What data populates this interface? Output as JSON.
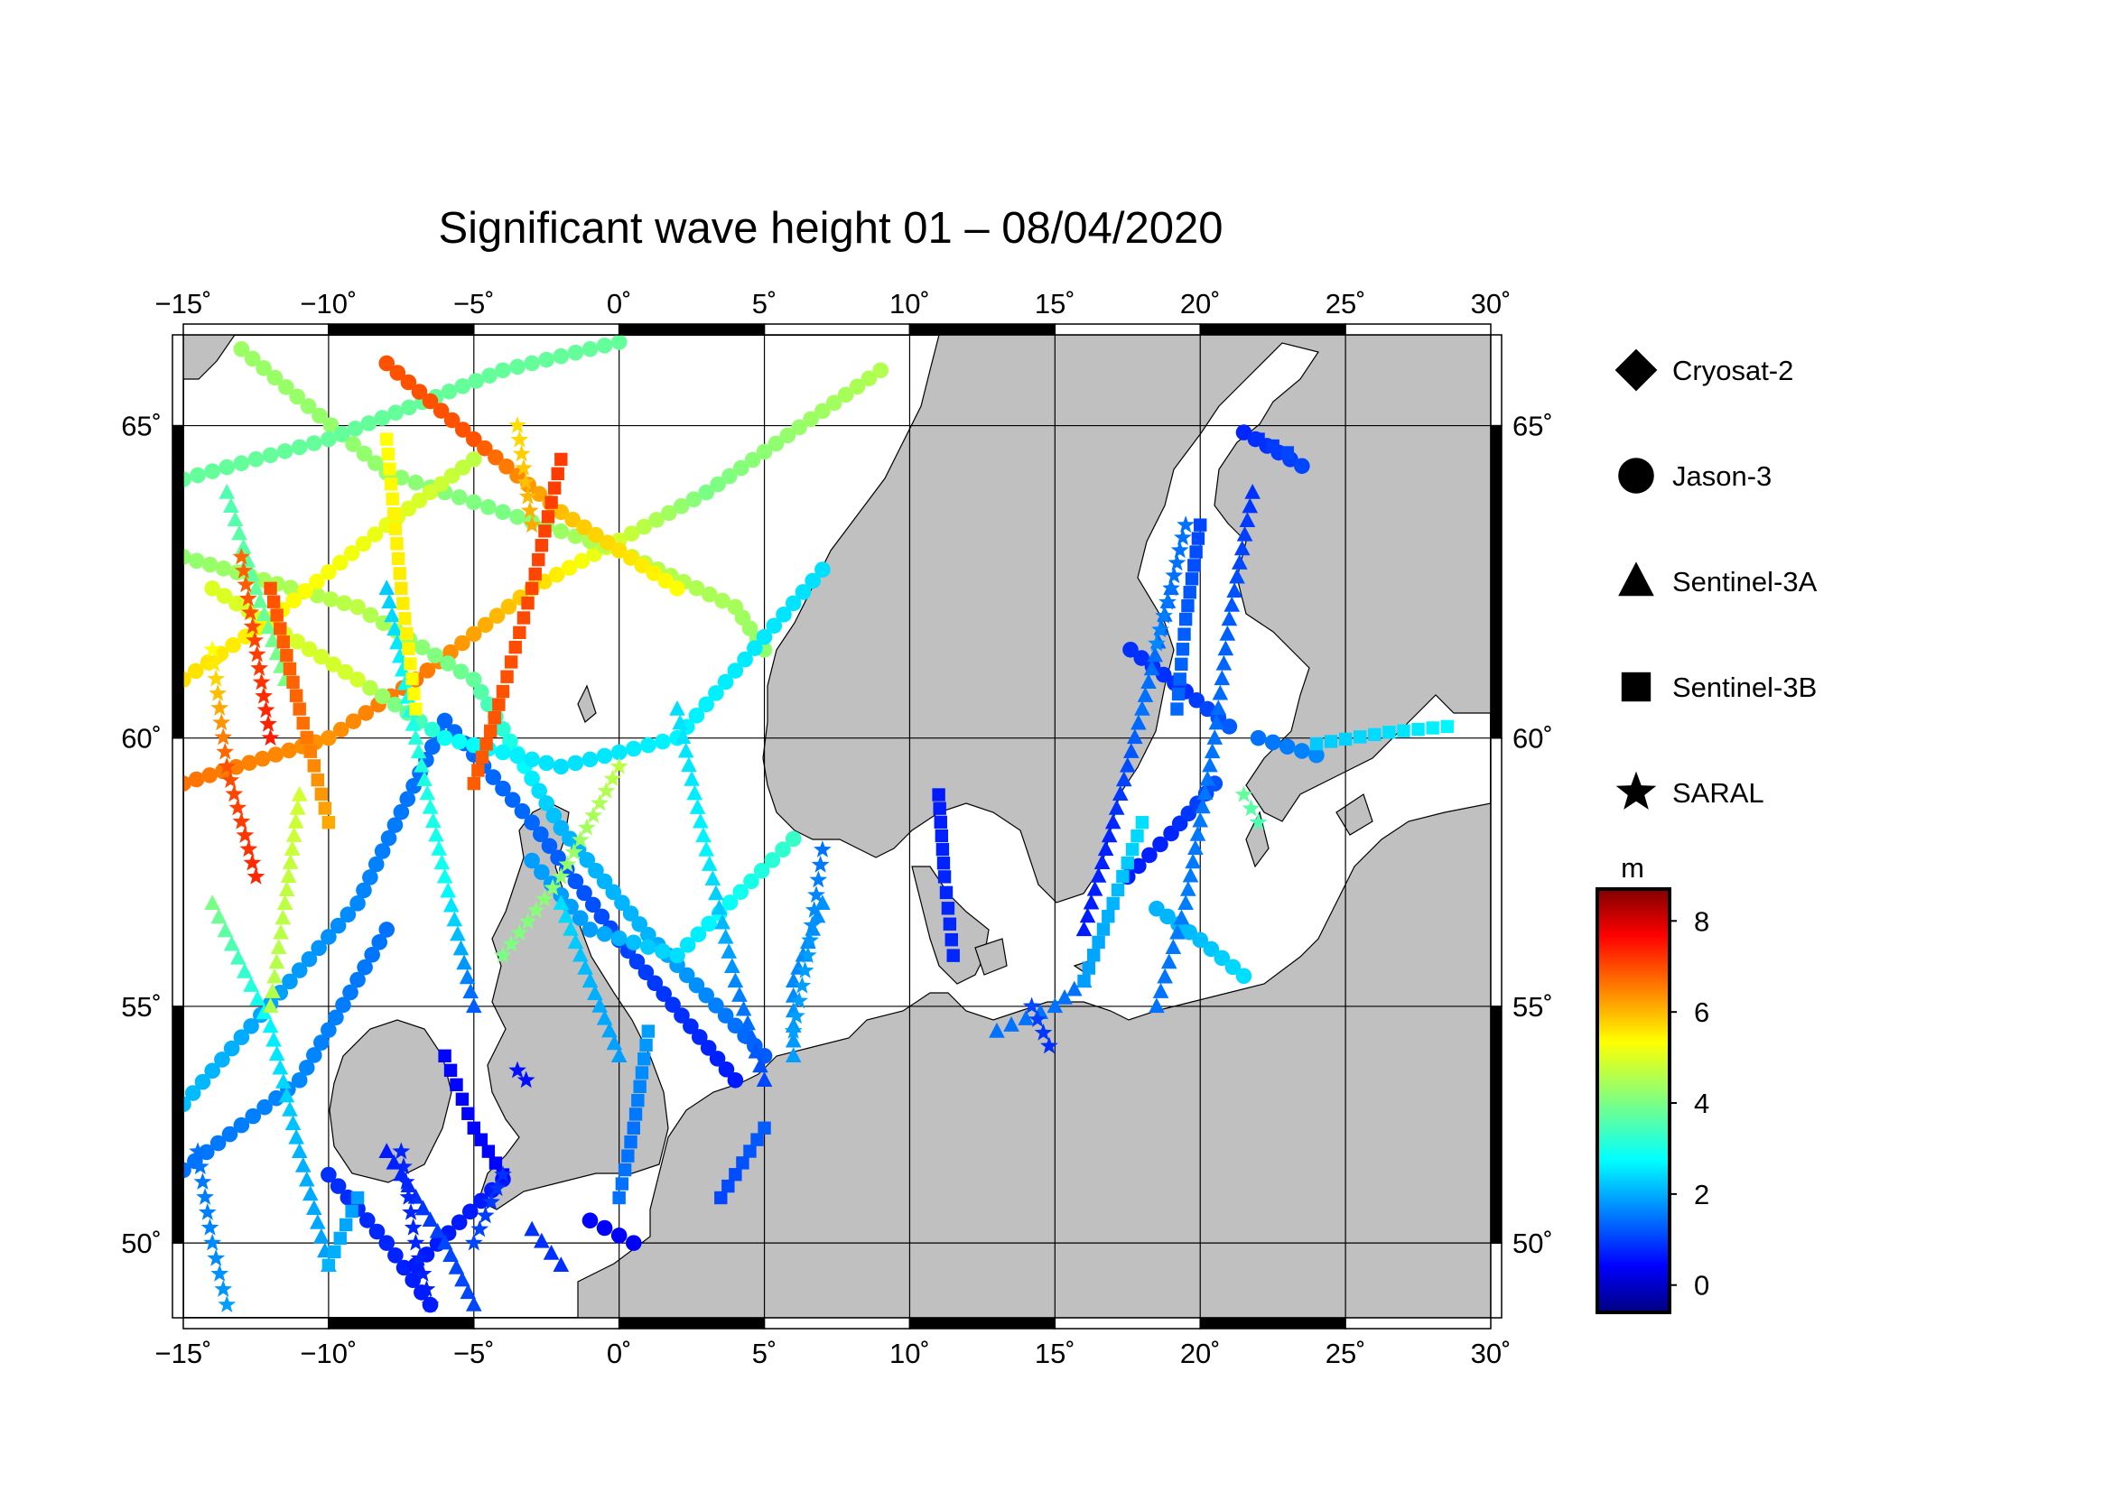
{
  "title": "Significant wave height 01 – 08/04/2020",
  "map": {
    "lon_range": [
      -15,
      30
    ],
    "lat_range": [
      48.3,
      66.3
    ],
    "projection": "mercator",
    "lon_ticks": [
      -15,
      -10,
      -5,
      0,
      5,
      10,
      15,
      20,
      25,
      30
    ],
    "lat_ticks": [
      50,
      55,
      60,
      65
    ],
    "lon_tick_labels": [
      "−15˚",
      "−10˚",
      "−5˚",
      "0˚",
      "5˚",
      "10˚",
      "15˚",
      "20˚",
      "25˚",
      "30˚"
    ],
    "lat_tick_labels": [
      "50˚",
      "55˚",
      "60˚",
      "65˚"
    ],
    "land_color": "#c0c0c0",
    "sea_color": "#ffffff"
  },
  "legend": {
    "items": [
      {
        "label": "Cryosat-2",
        "symbol": "diamond"
      },
      {
        "label": "Jason-3",
        "symbol": "circle"
      },
      {
        "label": "Sentinel-3A",
        "symbol": "triangle"
      },
      {
        "label": "Sentinel-3B",
        "symbol": "square"
      },
      {
        "label": "SARAL",
        "symbol": "star"
      }
    ]
  },
  "colorbar": {
    "unit": "m",
    "range": [
      -0.6,
      8.7
    ],
    "ticks": [
      0,
      2,
      4,
      6,
      8
    ],
    "tick_labels": [
      "0",
      "2",
      "4",
      "6",
      "8"
    ],
    "colormap": "jet"
  },
  "tracks": [
    {
      "sat": "Jason-3",
      "points": [
        [
          -15,
          53.0,
          2.3
        ],
        [
          -9,
          57.0,
          1.8
        ],
        [
          -6,
          60.3,
          1.5
        ],
        [
          -3,
          58.5,
          1.5
        ],
        [
          0,
          56.3,
          1.2
        ],
        [
          4,
          53.5,
          0.8
        ]
      ]
    },
    {
      "sat": "Jason-3",
      "points": [
        [
          -15,
          59.2,
          6.5
        ],
        [
          -10,
          60.0,
          6.2
        ],
        [
          -7,
          61.0,
          6.5
        ],
        [
          -3,
          62.5,
          5.6
        ],
        [
          3,
          64.0,
          4.0
        ],
        [
          9,
          65.8,
          4.5
        ]
      ]
    },
    {
      "sat": "Jason-3",
      "points": [
        [
          -15,
          63.0,
          4.2
        ],
        [
          -9,
          62.2,
          4.6
        ],
        [
          -5,
          61.0,
          3.8
        ],
        [
          -2,
          58.4,
          2.2
        ],
        [
          1,
          56.4,
          2.2
        ],
        [
          5,
          54.0,
          1.4
        ]
      ]
    },
    {
      "sat": "Jason-3",
      "points": [
        [
          -13,
          66.1,
          4.3
        ],
        [
          -8,
          64.3,
          4.2
        ],
        [
          -4,
          63.7,
          4.0
        ],
        [
          0,
          63.1,
          4.6
        ],
        [
          4,
          62.2,
          4.4
        ],
        [
          5,
          61.5,
          4.2
        ]
      ]
    },
    {
      "sat": "Jason-3",
      "points": [
        [
          -15,
          64.2,
          3.8
        ],
        [
          -10,
          64.8,
          3.8
        ],
        [
          -4,
          65.8,
          3.8
        ],
        [
          0,
          66.2,
          3.8
        ]
      ]
    },
    {
      "sat": "Jason-3",
      "points": [
        [
          -14,
          62.5,
          4.9
        ],
        [
          -9,
          61.0,
          4.8
        ],
        [
          -6,
          60.0,
          3.0
        ],
        [
          -2,
          59.5,
          2.6
        ],
        [
          2,
          60.0,
          2.8
        ],
        [
          7,
          62.8,
          2.6
        ]
      ]
    },
    {
      "sat": "Jason-3",
      "points": [
        [
          -8,
          65.9,
          6.8
        ],
        [
          -5,
          64.8,
          6.8
        ],
        [
          -2,
          63.7,
          5.8
        ],
        [
          2,
          62.5,
          5.2
        ]
      ]
    },
    {
      "sat": "Jason-3",
      "points": [
        [
          -15,
          61.0,
          5.5
        ],
        [
          -12,
          62.0,
          5.3
        ],
        [
          -8,
          63.5,
          5.0
        ],
        [
          -5,
          64.5,
          4.6
        ]
      ]
    },
    {
      "sat": "Jason-3",
      "points": [
        [
          -10,
          51.5,
          1.0
        ],
        [
          -8,
          50.0,
          0.9
        ],
        [
          -6.5,
          48.6,
          0.8
        ]
      ]
    },
    {
      "sat": "Jason-3",
      "points": [
        [
          -15,
          51.6,
          1.6
        ],
        [
          -11,
          53.5,
          1.8
        ],
        [
          -8,
          56.5,
          1.6
        ]
      ]
    },
    {
      "sat": "Jason-3",
      "points": [
        [
          -1,
          50.5,
          0.6
        ],
        [
          0.5,
          50.0,
          0.5
        ]
      ]
    },
    {
      "sat": "Jason-3",
      "points": [
        [
          -7,
          49.5,
          0.8
        ],
        [
          -4,
          51.4,
          0.8
        ]
      ]
    },
    {
      "sat": "Jason-3",
      "points": [
        [
          -3,
          57.8,
          2.0
        ],
        [
          -1,
          56.5,
          2.0
        ],
        [
          2,
          56.0,
          2.6
        ],
        [
          6,
          58.2,
          3.4
        ]
      ]
    },
    {
      "sat": "Jason-3",
      "points": [
        [
          17.5,
          57.5,
          0.8
        ],
        [
          19,
          58.3,
          0.9
        ],
        [
          20.5,
          59.2,
          1.3
        ]
      ]
    },
    {
      "sat": "Jason-3",
      "points": [
        [
          17.6,
          61.5,
          1.0
        ],
        [
          19.5,
          60.8,
          1.0
        ],
        [
          21,
          60.2,
          1.4
        ]
      ]
    },
    {
      "sat": "Jason-3",
      "points": [
        [
          18.5,
          56.9,
          2.2
        ],
        [
          20,
          56.3,
          2.3
        ],
        [
          21.5,
          55.6,
          2.6
        ]
      ]
    },
    {
      "sat": "Jason-3",
      "points": [
        [
          22,
          60.0,
          1.6
        ],
        [
          24,
          59.7,
          1.8
        ]
      ]
    },
    {
      "sat": "Jason-3",
      "points": [
        [
          21.5,
          64.9,
          0.9
        ],
        [
          23.5,
          64.4,
          1.2
        ]
      ]
    },
    {
      "sat": "Sentinel-3A",
      "points": [
        [
          -14,
          57.0,
          4.0
        ],
        [
          -12,
          54.6,
          2.8
        ],
        [
          -11,
          52.0,
          2.2
        ],
        [
          -10,
          49.5,
          2.0
        ]
      ]
    },
    {
      "sat": "Sentinel-3A",
      "points": [
        [
          -8,
          62.5,
          2.4
        ],
        [
          -7,
          60.0,
          3.2
        ],
        [
          -6,
          57.5,
          3.0
        ],
        [
          -5,
          55.0,
          1.4
        ]
      ]
    },
    {
      "sat": "Sentinel-3A",
      "points": [
        [
          2,
          60.5,
          2.6
        ],
        [
          3,
          58.0,
          2.8
        ],
        [
          4,
          55.5,
          1.8
        ],
        [
          5,
          53.5,
          1.2
        ]
      ]
    },
    {
      "sat": "Sentinel-3A",
      "points": [
        [
          -2,
          57.0,
          2.6
        ],
        [
          -1,
          55.5,
          2.2
        ],
        [
          0,
          54.0,
          2.0
        ]
      ]
    },
    {
      "sat": "Sentinel-3A",
      "points": [
        [
          7,
          57.0,
          1.9
        ],
        [
          6,
          55.5,
          1.8
        ],
        [
          6,
          54.0,
          2.0
        ]
      ]
    },
    {
      "sat": "Sentinel-3A",
      "points": [
        [
          19,
          62.5,
          1.5
        ],
        [
          18,
          60.5,
          1.6
        ],
        [
          17,
          58.5,
          0.9
        ],
        [
          16,
          56.5,
          0.8
        ]
      ]
    },
    {
      "sat": "Sentinel-3A",
      "points": [
        [
          21.8,
          64.0,
          1.0
        ],
        [
          21.0,
          62.0,
          1.4
        ],
        [
          20.5,
          60.0,
          1.6
        ],
        [
          19.5,
          57.0,
          1.7
        ],
        [
          18.5,
          55.0,
          1.6
        ]
      ]
    },
    {
      "sat": "Sentinel-3A",
      "points": [
        [
          -8,
          52.0,
          0.8
        ],
        [
          -6,
          50.0,
          1.2
        ],
        [
          -5,
          48.6,
          1.2
        ]
      ]
    },
    {
      "sat": "Sentinel-3A",
      "points": [
        [
          -3,
          50.3,
          1.0
        ],
        [
          -2,
          49.5,
          1.0
        ]
      ]
    },
    {
      "sat": "Sentinel-3A",
      "points": [
        [
          13,
          54.5,
          1.6
        ],
        [
          15,
          55.0,
          1.6
        ],
        [
          16,
          55.5,
          1.6
        ]
      ]
    },
    {
      "sat": "Sentinel-3A",
      "points": [
        [
          -12,
          55.0,
          4.5
        ],
        [
          -11.5,
          57.0,
          4.6
        ],
        [
          -11,
          59.0,
          4.8
        ]
      ]
    },
    {
      "sat": "Sentinel-3A",
      "points": [
        [
          -13.5,
          64.0,
          3.6
        ],
        [
          -12.5,
          62.5,
          3.8
        ],
        [
          -11.5,
          61.0,
          4.0
        ]
      ]
    },
    {
      "sat": "Sentinel-3B",
      "points": [
        [
          -12,
          62.5,
          6.8
        ],
        [
          -11,
          60.5,
          6.6
        ],
        [
          -10,
          58.5,
          6.0
        ]
      ]
    },
    {
      "sat": "Sentinel-3B",
      "points": [
        [
          -2,
          64.5,
          7.0
        ],
        [
          -3,
          62.5,
          6.9
        ],
        [
          -4,
          60.8,
          6.8
        ],
        [
          -5,
          59.2,
          6.7
        ]
      ]
    },
    {
      "sat": "Sentinel-3B",
      "points": [
        [
          -8,
          64.8,
          5.2
        ],
        [
          -7.5,
          62.5,
          5.4
        ],
        [
          -7,
          60.5,
          5.2
        ]
      ]
    },
    {
      "sat": "Sentinel-3B",
      "points": [
        [
          -6,
          54.0,
          0.6
        ],
        [
          -5,
          52.5,
          0.6
        ],
        [
          -4,
          51.5,
          0.6
        ]
      ]
    },
    {
      "sat": "Sentinel-3B",
      "points": [
        [
          1,
          54.5,
          2.0
        ],
        [
          0.5,
          52.5,
          1.6
        ],
        [
          0,
          51.0,
          1.6
        ]
      ]
    },
    {
      "sat": "Sentinel-3B",
      "points": [
        [
          5,
          52.5,
          1.4
        ],
        [
          3.5,
          51.0,
          1.2
        ]
      ]
    },
    {
      "sat": "Sentinel-3B",
      "points": [
        [
          11,
          59.0,
          0.8
        ],
        [
          11.2,
          57.5,
          0.9
        ],
        [
          11.5,
          56.0,
          0.9
        ]
      ]
    },
    {
      "sat": "Sentinel-3B",
      "points": [
        [
          16,
          55.5,
          2.0
        ],
        [
          17,
          57.0,
          2.2
        ],
        [
          18,
          58.5,
          2.6
        ]
      ]
    },
    {
      "sat": "Sentinel-3B",
      "points": [
        [
          20,
          63.5,
          1.2
        ],
        [
          19.5,
          62.0,
          1.4
        ],
        [
          19.2,
          60.5,
          1.5
        ]
      ]
    },
    {
      "sat": "Sentinel-3B",
      "points": [
        [
          24,
          59.9,
          2.4
        ],
        [
          26.5,
          60.1,
          2.6
        ],
        [
          28.5,
          60.2,
          2.8
        ]
      ]
    },
    {
      "sat": "Sentinel-3B",
      "points": [
        [
          22,
          64.8,
          1.0
        ],
        [
          23,
          64.6,
          1.2
        ]
      ]
    },
    {
      "sat": "Sentinel-3B",
      "points": [
        [
          -9,
          51.0,
          2.0
        ],
        [
          -10,
          49.5,
          2.2
        ]
      ]
    },
    {
      "sat": "SARAL",
      "points": [
        [
          -14,
          61.5,
          5.2
        ],
        [
          -13.5,
          59.5,
          6.8
        ],
        [
          -12.5,
          57.5,
          7.2
        ]
      ]
    },
    {
      "sat": "SARAL",
      "points": [
        [
          -13,
          63.0,
          6.6
        ],
        [
          -12,
          60.0,
          7.3
        ]
      ]
    },
    {
      "sat": "SARAL",
      "points": [
        [
          -14.5,
          52.0,
          1.6
        ],
        [
          -14,
          50.0,
          1.8
        ],
        [
          -13.5,
          48.6,
          2.0
        ]
      ]
    },
    {
      "sat": "SARAL",
      "points": [
        [
          -7.5,
          52.0,
          0.9
        ],
        [
          -7,
          50.0,
          0.9
        ],
        [
          -6.5,
          48.6,
          0.8
        ]
      ]
    },
    {
      "sat": "SARAL",
      "points": [
        [
          -5,
          50.0,
          1.2
        ],
        [
          -4,
          51.5,
          1.0
        ]
      ]
    },
    {
      "sat": "SARAL",
      "points": [
        [
          7,
          58.0,
          1.6
        ],
        [
          6.5,
          56.0,
          2.0
        ],
        [
          6,
          54.5,
          2.0
        ]
      ]
    },
    {
      "sat": "SARAL",
      "points": [
        [
          14.2,
          55.0,
          1.2
        ],
        [
          14.8,
          54.2,
          1.0
        ]
      ]
    },
    {
      "sat": "SARAL",
      "points": [
        [
          19.5,
          63.5,
          1.6
        ],
        [
          19,
          62.5,
          1.6
        ],
        [
          18.5,
          61.6,
          1.8
        ]
      ]
    },
    {
      "sat": "SARAL",
      "points": [
        [
          -4,
          56.0,
          4.0
        ],
        [
          -2,
          57.5,
          4.2
        ],
        [
          0,
          59.5,
          4.6
        ]
      ]
    },
    {
      "sat": "SARAL",
      "points": [
        [
          -3,
          63.5,
          6.0
        ],
        [
          -3.5,
          65.0,
          5.5
        ]
      ]
    },
    {
      "sat": "SARAL",
      "points": [
        [
          21.5,
          59.0,
          3.8
        ],
        [
          22,
          58.5,
          3.6
        ]
      ]
    },
    {
      "sat": "SARAL",
      "points": [
        [
          -3.5,
          53.7,
          0.7
        ],
        [
          -3.2,
          53.5,
          0.7
        ]
      ]
    }
  ]
}
